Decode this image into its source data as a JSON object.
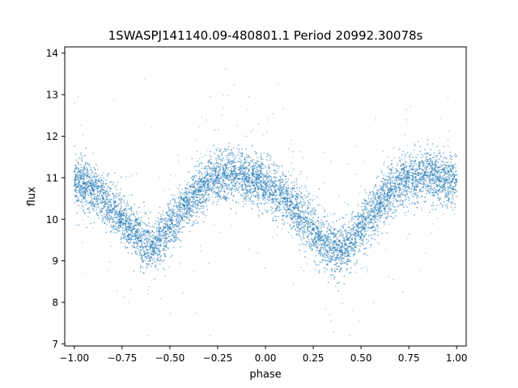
{
  "chart_data": {
    "type": "scatter",
    "title": "1SWASPJ141140.09-480801.1 Period 20992.30078s",
    "xlabel": "phase",
    "ylabel": "flux",
    "xlim": [
      -1.05,
      1.05
    ],
    "ylim": [
      6.95,
      14.15
    ],
    "xticks": [
      -1.0,
      -0.75,
      -0.5,
      -0.25,
      0.0,
      0.25,
      0.5,
      0.75,
      1.0
    ],
    "xtick_labels": [
      "−1.00",
      "−0.75",
      "−0.50",
      "−0.25",
      "0.00",
      "0.25",
      "0.50",
      "0.75",
      "1.00"
    ],
    "yticks": [
      7,
      8,
      9,
      10,
      11,
      12,
      13,
      14
    ],
    "ytick_labels": [
      "7",
      "8",
      "9",
      "10",
      "11",
      "12",
      "13",
      "14"
    ],
    "grid": false,
    "legend": "none",
    "marker_color": "#1f77b4",
    "series": [
      {
        "x": [
          -1.0,
          -0.95,
          -0.9,
          -0.85,
          -0.8,
          -0.75,
          -0.7,
          -0.65,
          -0.6,
          -0.55,
          -0.5,
          -0.45,
          -0.4,
          -0.35,
          -0.3,
          -0.25,
          -0.2,
          -0.15,
          -0.1,
          -0.05,
          0.0,
          0.05,
          0.1,
          0.15,
          0.2,
          0.25,
          0.3,
          0.35,
          0.4,
          0.45,
          0.5,
          0.55,
          0.6,
          0.65,
          0.7,
          0.75,
          0.8,
          0.85,
          0.9,
          0.95,
          1.0
        ],
        "y": [
          10.95,
          10.85,
          10.7,
          10.5,
          10.25,
          10.0,
          9.75,
          9.5,
          9.35,
          9.5,
          9.8,
          10.1,
          10.4,
          10.65,
          10.85,
          11.0,
          11.05,
          11.05,
          11.0,
          10.95,
          10.85,
          10.7,
          10.5,
          10.25,
          10.0,
          9.75,
          9.5,
          9.3,
          9.25,
          9.45,
          9.8,
          10.1,
          10.4,
          10.65,
          10.85,
          11.0,
          11.05,
          11.05,
          11.0,
          10.95,
          10.9
        ],
        "scatter_sd": 0.3
      }
    ]
  }
}
